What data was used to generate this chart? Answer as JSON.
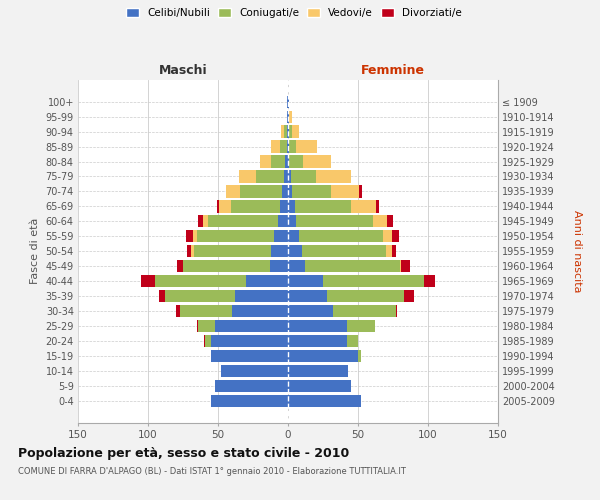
{
  "age_groups": [
    "0-4",
    "5-9",
    "10-14",
    "15-19",
    "20-24",
    "25-29",
    "30-34",
    "35-39",
    "40-44",
    "45-49",
    "50-54",
    "55-59",
    "60-64",
    "65-69",
    "70-74",
    "75-79",
    "80-84",
    "85-89",
    "90-94",
    "95-99",
    "100+"
  ],
  "birth_years": [
    "2005-2009",
    "2000-2004",
    "1995-1999",
    "1990-1994",
    "1985-1989",
    "1980-1984",
    "1975-1979",
    "1970-1974",
    "1965-1969",
    "1960-1964",
    "1955-1959",
    "1950-1954",
    "1945-1949",
    "1940-1944",
    "1935-1939",
    "1930-1934",
    "1925-1929",
    "1920-1924",
    "1915-1919",
    "1910-1914",
    "≤ 1909"
  ],
  "colors": {
    "celibi": "#4472C4",
    "coniugati": "#9BBB59",
    "vedovi": "#F9C86A",
    "divorziati": "#C0001A"
  },
  "maschi": {
    "celibi": [
      55,
      52,
      48,
      55,
      55,
      52,
      40,
      38,
      30,
      13,
      12,
      10,
      7,
      6,
      4,
      3,
      2,
      1,
      1,
      1,
      1
    ],
    "coniugati": [
      0,
      0,
      0,
      0,
      4,
      12,
      37,
      50,
      65,
      62,
      55,
      55,
      50,
      35,
      30,
      20,
      10,
      5,
      2,
      0,
      0
    ],
    "vedovi": [
      0,
      0,
      0,
      0,
      0,
      0,
      0,
      0,
      0,
      0,
      2,
      3,
      4,
      8,
      10,
      12,
      8,
      6,
      2,
      0,
      0
    ],
    "divorziati": [
      0,
      0,
      0,
      0,
      1,
      1,
      3,
      4,
      10,
      4,
      3,
      5,
      3,
      2,
      0,
      0,
      0,
      0,
      0,
      0,
      0
    ]
  },
  "femmine": {
    "nubili": [
      52,
      45,
      43,
      50,
      42,
      42,
      32,
      28,
      25,
      12,
      10,
      8,
      6,
      5,
      3,
      2,
      1,
      1,
      1,
      1,
      1
    ],
    "coniugate": [
      0,
      0,
      0,
      2,
      8,
      20,
      45,
      55,
      72,
      68,
      60,
      60,
      55,
      40,
      28,
      18,
      10,
      5,
      2,
      0,
      0
    ],
    "vedove": [
      0,
      0,
      0,
      0,
      0,
      0,
      0,
      0,
      0,
      1,
      4,
      6,
      10,
      18,
      20,
      25,
      20,
      15,
      5,
      2,
      0
    ],
    "divorziate": [
      0,
      0,
      0,
      0,
      0,
      0,
      1,
      7,
      8,
      6,
      3,
      5,
      4,
      2,
      2,
      0,
      0,
      0,
      0,
      0,
      0
    ]
  },
  "xlim": 150,
  "title": "Popolazione per età, sesso e stato civile - 2010",
  "subtitle": "COMUNE DI FARRA D'ALPAGO (BL) - Dati ISTAT 1° gennaio 2010 - Elaborazione TUTTITALIA.IT",
  "ylabel_left": "Fasce di età",
  "ylabel_right": "Anni di nascita",
  "label_maschi": "Maschi",
  "label_femmine": "Femmine",
  "bg_color": "#F2F2F2",
  "plot_bg": "#FFFFFF",
  "grid_color": "#CCCCCC",
  "legend": [
    "Celibi/Nubili",
    "Coniugati/e",
    "Vedovi/e",
    "Divorziati/e"
  ]
}
